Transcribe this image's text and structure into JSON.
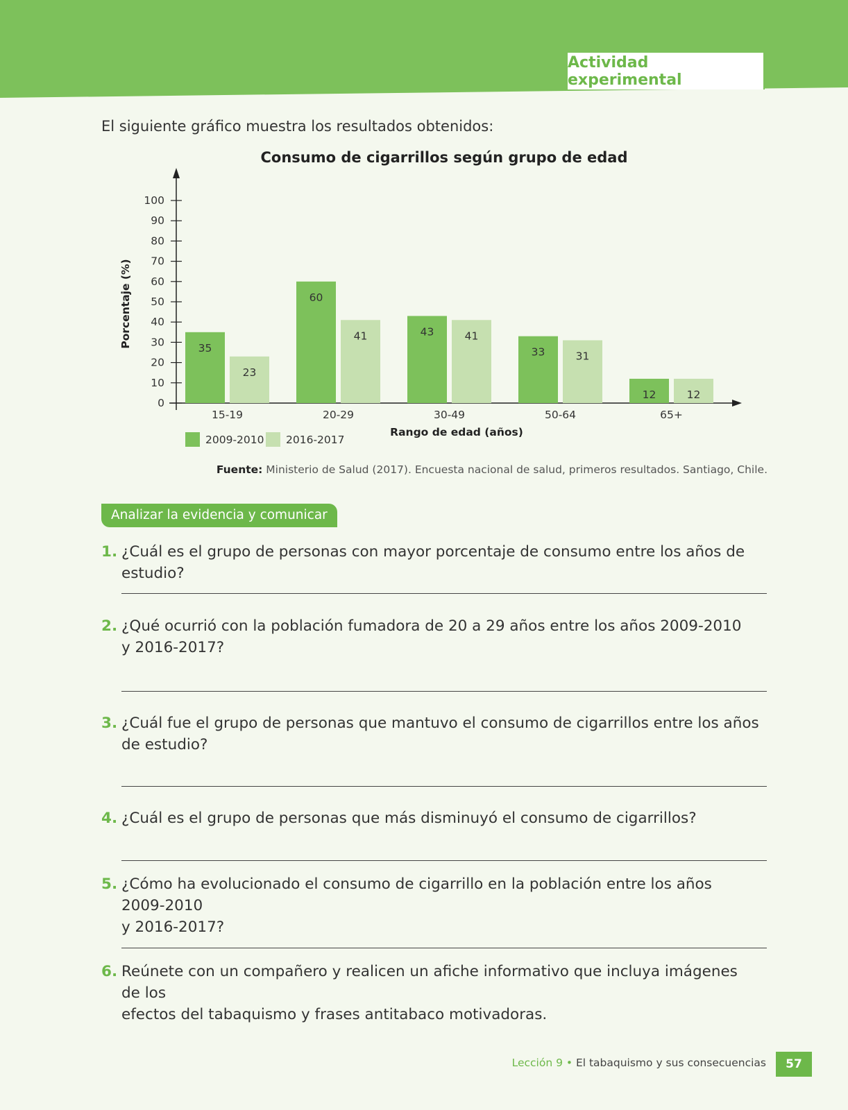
{
  "header": {
    "tag": "Actividad experimental"
  },
  "intro": "El siguiente gráfico muestra los resultados obtenidos:",
  "chart_data": {
    "type": "bar",
    "title": "Consumo de cigarrillos según grupo de edad",
    "xlabel": "Rango de edad (años)",
    "ylabel": "Porcentaje (%)",
    "ylim": [
      0,
      100
    ],
    "yticks": [
      "0",
      "10",
      "20",
      "30",
      "40",
      "50",
      "60",
      "70",
      "80",
      "90",
      "100"
    ],
    "categories": [
      "15-19",
      "20-29",
      "30-49",
      "50-64",
      "65+"
    ],
    "series": [
      {
        "name": "2009-2010",
        "values": [
          35,
          60,
          43,
          33,
          12
        ],
        "color": "#7dc15b"
      },
      {
        "name": "2016-2017",
        "values": [
          23,
          41,
          41,
          31,
          12
        ],
        "color": "#c6e0b0"
      }
    ],
    "legend": "bottom-left",
    "grid": false
  },
  "source": {
    "label": "Fuente:",
    "text": "Ministerio de Salud (2017). Encuesta nacional de salud, primeros resultados. Santiago, Chile."
  },
  "section_label": "Analizar la evidencia y comunicar",
  "questions": [
    {
      "num": "1.",
      "text": "¿Cuál es el grupo de personas con mayor porcentaje de consumo entre los años de estudio?"
    },
    {
      "num": "2.",
      "text": "¿Qué ocurrió con la población fumadora de 20 a 29 años entre los años 2009-2010\ny 2016-2017?"
    },
    {
      "num": "3.",
      "text": "¿Cuál fue el grupo de personas que mantuvo el consumo de cigarrillos entre los años\nde estudio?"
    },
    {
      "num": "4.",
      "text": "¿Cuál es el grupo de personas que más disminuyó el consumo de cigarrillos?"
    },
    {
      "num": "5.",
      "text": "¿Cómo ha evolucionado el consumo de cigarrillo en la población entre los años 2009-2010\ny 2016-2017?"
    },
    {
      "num": "6.",
      "text": "Reúnete con un compañero y realicen un afiche informativo que incluya imágenes de los\nefectos del tabaquismo y frases antitabaco motivadoras."
    }
  ],
  "footer": {
    "lesson": "Lección 9",
    "separator": " • ",
    "topic": "El tabaquismo y sus consecuencias",
    "page": "57"
  },
  "colors": {
    "accent": "#7dc15b",
    "accent_dark": "#6db84a",
    "light_bar": "#c6e0b0"
  }
}
